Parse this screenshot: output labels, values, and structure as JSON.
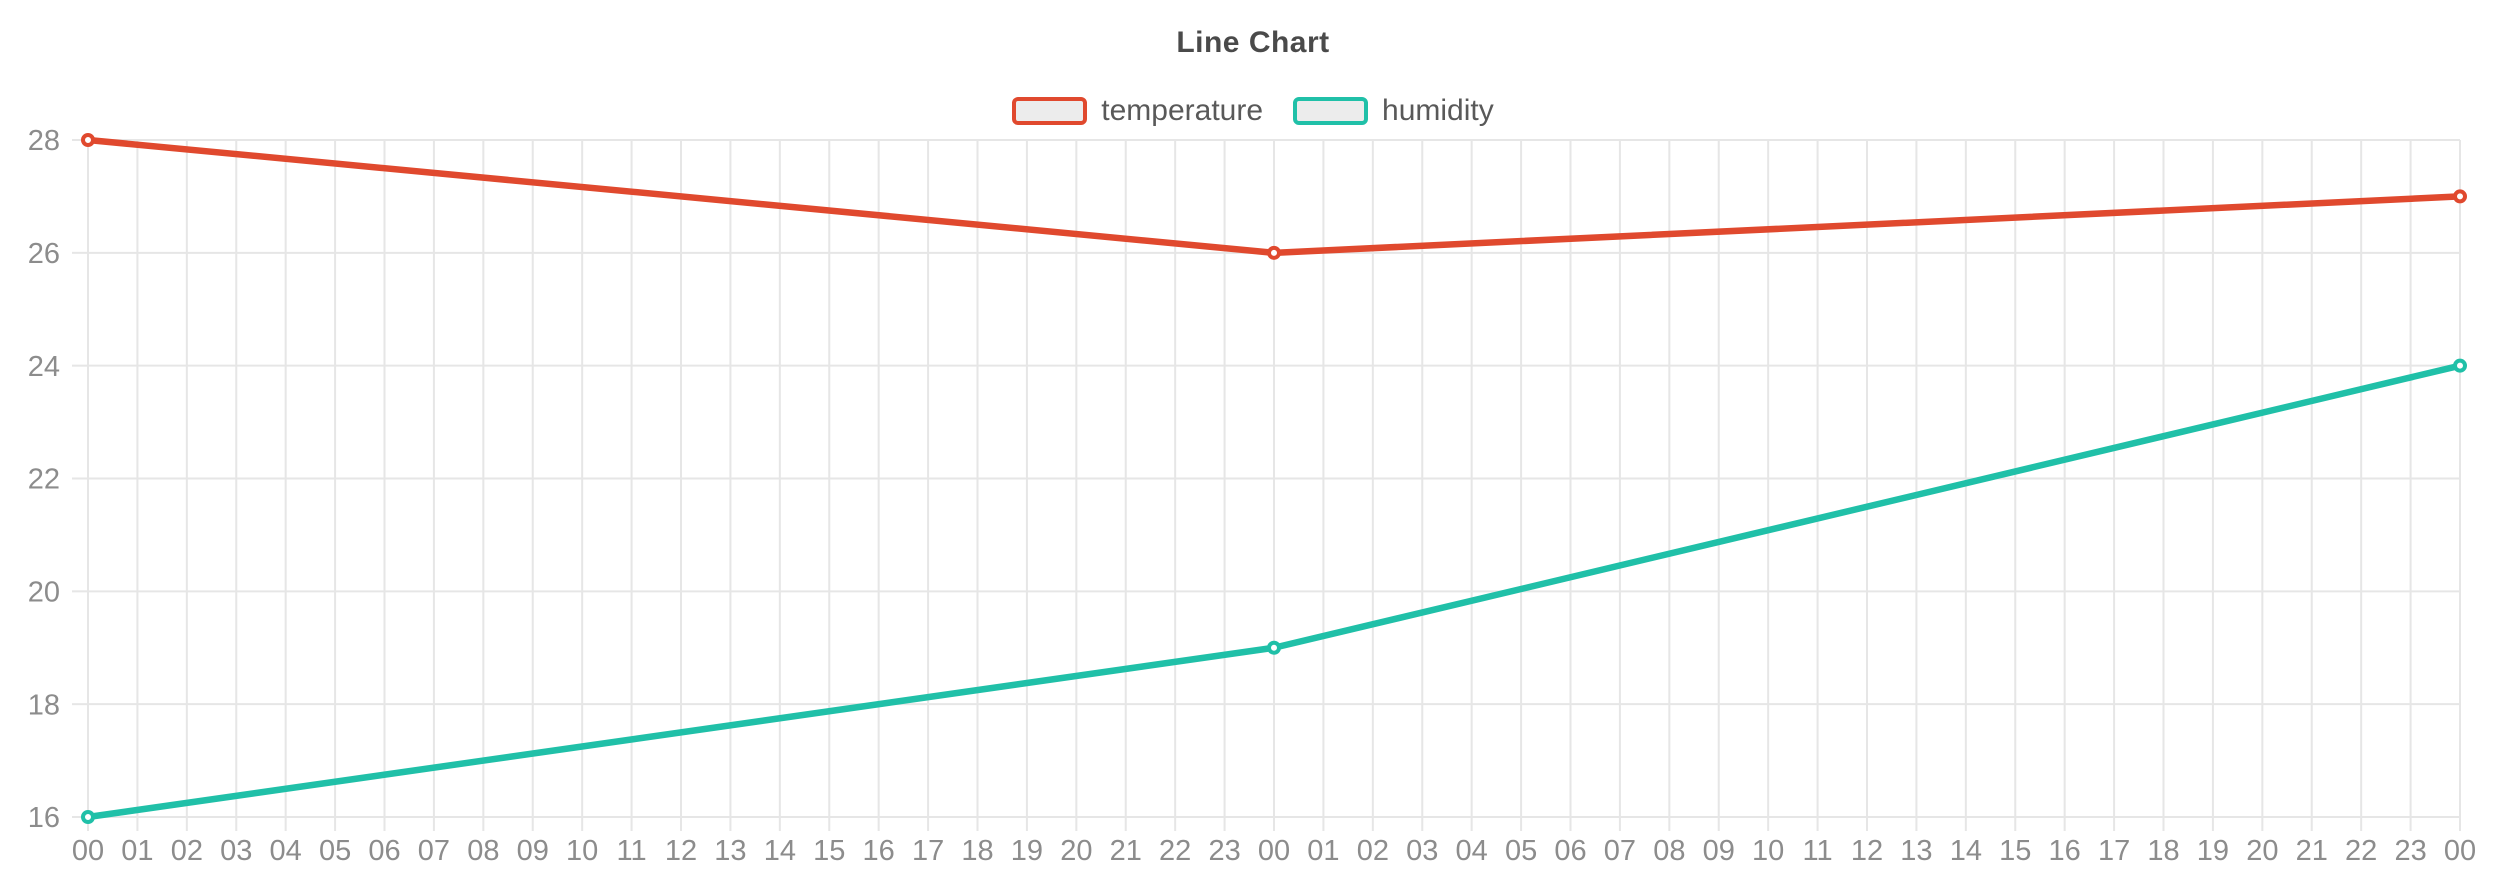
{
  "chart_data": {
    "type": "line",
    "title": "Line Chart",
    "legend_position": "top",
    "legend": [
      "temperature",
      "humidity"
    ],
    "x_categories": [
      "00",
      "01",
      "02",
      "03",
      "04",
      "05",
      "06",
      "07",
      "08",
      "09",
      "10",
      "11",
      "12",
      "13",
      "14",
      "15",
      "16",
      "17",
      "18",
      "19",
      "20",
      "21",
      "22",
      "23",
      "00",
      "01",
      "02",
      "03",
      "04",
      "05",
      "06",
      "07",
      "08",
      "09",
      "10",
      "11",
      "12",
      "13",
      "14",
      "15",
      "16",
      "17",
      "18",
      "19",
      "20",
      "21",
      "22",
      "23",
      "00"
    ],
    "series": [
      {
        "name": "temperature",
        "color": "#e0492e",
        "point_indices": [
          0,
          24,
          48
        ],
        "values": [
          28,
          26,
          27
        ]
      },
      {
        "name": "humidity",
        "color": "#20c0a8",
        "point_indices": [
          0,
          24,
          48
        ],
        "values": [
          16,
          19,
          24
        ]
      }
    ],
    "y_ticks": [
      16,
      18,
      20,
      22,
      24,
      26,
      28
    ],
    "ylim": [
      16,
      28
    ],
    "grid": true,
    "colors": {
      "grid_line": "#e6e6e6",
      "axis_label": "#8c8c8c",
      "legend_text": "#595959",
      "title_text": "#4a4a4a",
      "legend_swatch_fill": "#ececec",
      "marker_fill": "#ffffff",
      "background": "#ffffff"
    }
  }
}
